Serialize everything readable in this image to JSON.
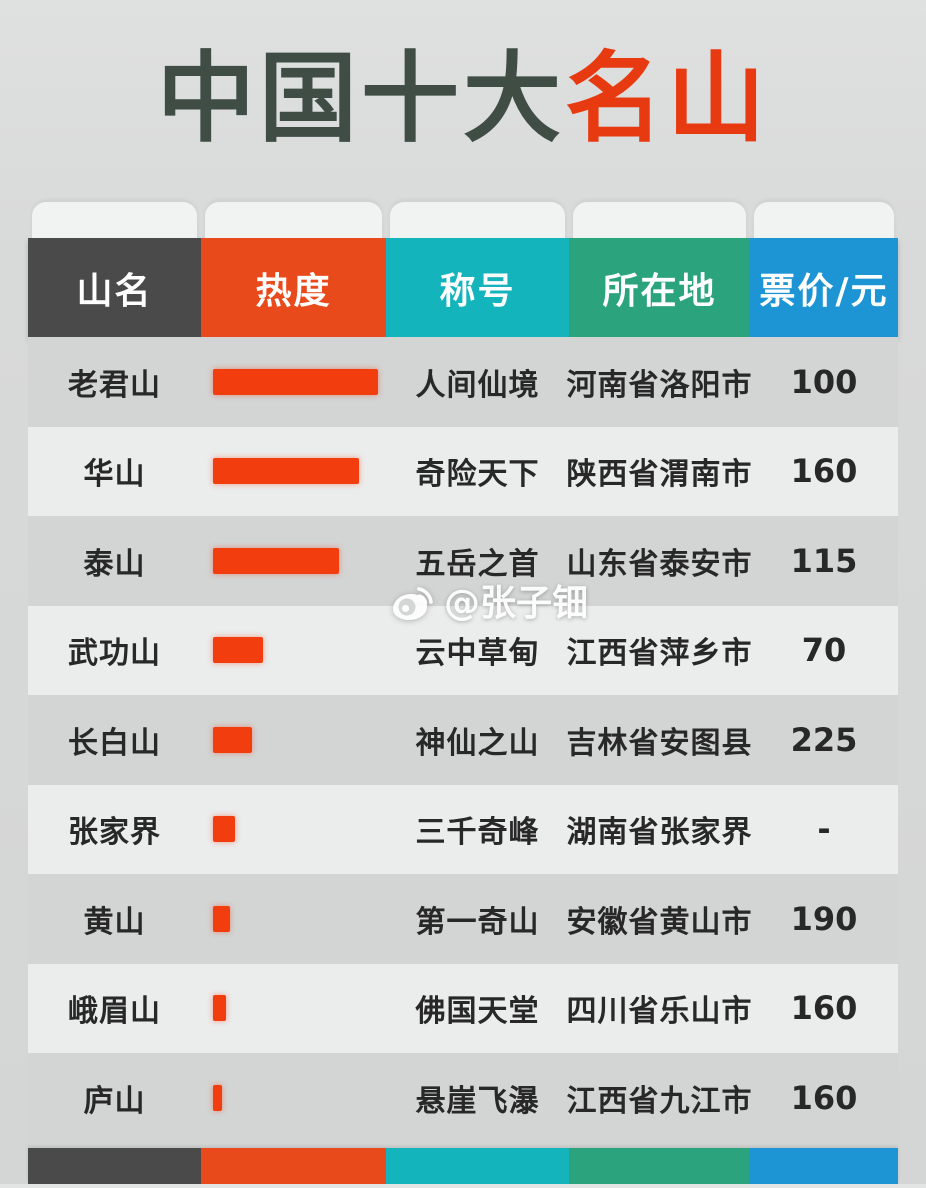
{
  "title": {
    "main": "中国十大",
    "accent": "名山"
  },
  "watermark": {
    "handle": "@张子钿",
    "icon": "weibo-icon"
  },
  "colors": {
    "title_main": "#3f4d45",
    "title_accent": "#e73a10",
    "header": [
      "#4a4a4a",
      "#e84a1b",
      "#14b4bc",
      "#2ba47e",
      "#1d95d4"
    ],
    "heat_bar": "#f23e0e",
    "row_odd": "#d3d4d4",
    "row_even": "#ebecec",
    "tab": "#f1f2f2"
  },
  "chart_data": {
    "type": "table",
    "title": "中国十大名山",
    "columns": [
      "山名",
      "热度",
      "称号",
      "所在地",
      "票价/元"
    ],
    "heat_rendering": "热度 column drawn as horizontal orange bars; heat_pct is bar length as % of column width, estimated from pixels",
    "rows": [
      {
        "name": "老君山",
        "heat_pct": 89,
        "alias": "人间仙境",
        "location": "河南省洛阳市",
        "price": "100"
      },
      {
        "name": "华山",
        "heat_pct": 79,
        "alias": "奇险天下",
        "location": "陕西省渭南市",
        "price": "160"
      },
      {
        "name": "泰山",
        "heat_pct": 68,
        "alias": "五岳之首",
        "location": "山东省泰安市",
        "price": "115"
      },
      {
        "name": "武功山",
        "heat_pct": 27,
        "alias": "云中草甸",
        "location": "江西省萍乡市",
        "price": "70"
      },
      {
        "name": "长白山",
        "heat_pct": 21,
        "alias": "神仙之山",
        "location": "吉林省安图县",
        "price": "225"
      },
      {
        "name": "张家界",
        "heat_pct": 12,
        "alias": "三千奇峰",
        "location": "湖南省张家界",
        "price": "-"
      },
      {
        "name": "黄山",
        "heat_pct": 9,
        "alias": "第一奇山",
        "location": "安徽省黄山市",
        "price": "190"
      },
      {
        "name": "峨眉山",
        "heat_pct": 7,
        "alias": "佛国天堂",
        "location": "四川省乐山市",
        "price": "160"
      },
      {
        "name": "庐山",
        "heat_pct": 5,
        "alias": "悬崖飞瀑",
        "location": "江西省九江市",
        "price": "160"
      }
    ]
  }
}
